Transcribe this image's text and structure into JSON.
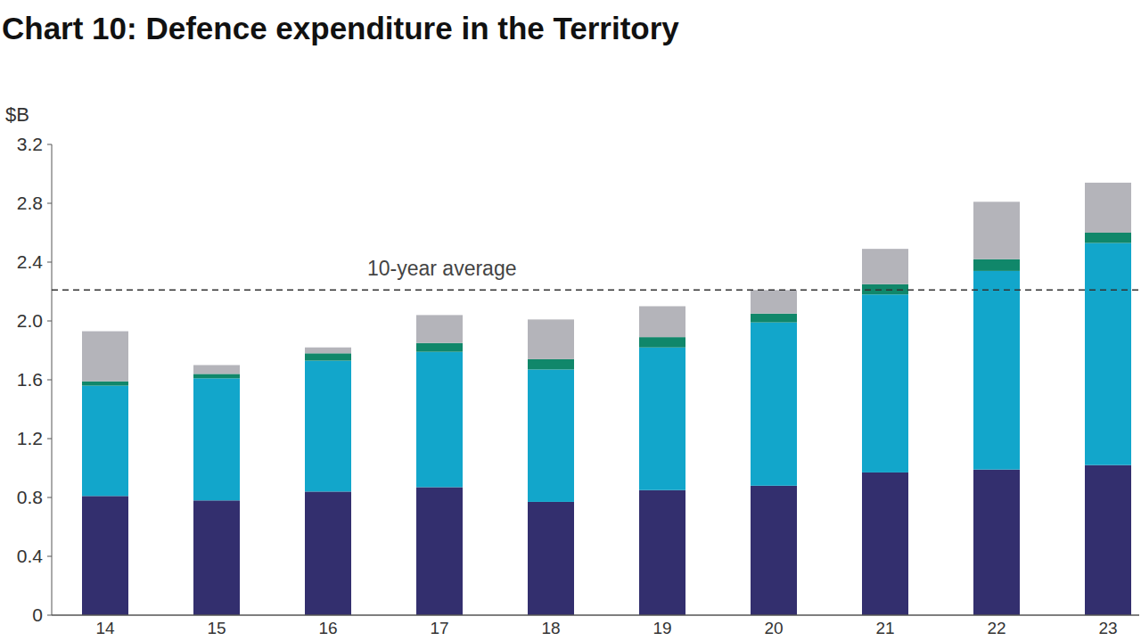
{
  "chart_data": {
    "type": "bar",
    "title": "Chart 10: Defence expenditure in the Territory",
    "y_label": "$B",
    "stacked": true,
    "grid": false,
    "categories": [
      "14",
      "15",
      "16",
      "17",
      "18",
      "19",
      "20",
      "21",
      "22",
      "23"
    ],
    "series": [
      {
        "color": "#332f6e",
        "values": [
          0.81,
          0.78,
          0.84,
          0.87,
          0.77,
          0.85,
          0.88,
          0.97,
          0.99,
          1.02
        ]
      },
      {
        "color": "#12a6cb",
        "values": [
          0.75,
          0.83,
          0.89,
          0.92,
          0.9,
          0.97,
          1.11,
          1.21,
          1.35,
          1.51
        ]
      },
      {
        "color": "#10876a",
        "values": [
          0.03,
          0.03,
          0.05,
          0.06,
          0.07,
          0.07,
          0.06,
          0.07,
          0.08,
          0.07
        ]
      },
      {
        "color": "#b4b4ba",
        "values": [
          0.34,
          0.06,
          0.04,
          0.19,
          0.27,
          0.21,
          0.16,
          0.24,
          0.39,
          0.34
        ]
      }
    ],
    "ylim": [
      0,
      3.2
    ],
    "yticks": [
      0,
      0.4,
      0.8,
      1.2,
      1.6,
      {
        "value": 2,
        "label": "2.0"
      },
      2.4,
      2.8,
      3.2
    ],
    "annotations": [
      {
        "text": "10-year average",
        "value": 2.21
      }
    ]
  }
}
